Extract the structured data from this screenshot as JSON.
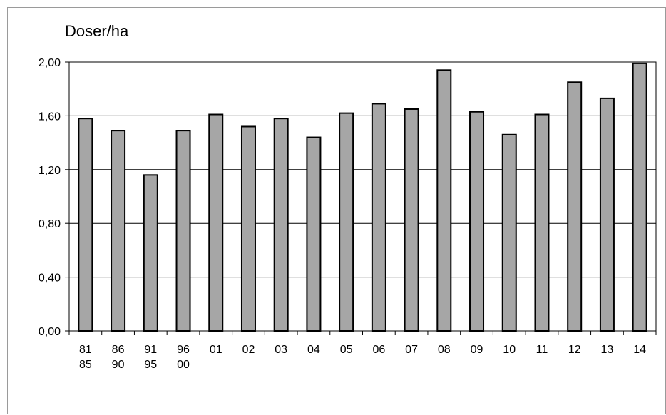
{
  "chart_data": {
    "type": "bar",
    "ylabel": "Doser/ha",
    "ylim": [
      0,
      2.0
    ],
    "yticks": [
      "0,00",
      "0,40",
      "0,80",
      "1,20",
      "1,60",
      "2,00"
    ],
    "yticks_values": [
      0,
      0.4,
      0.8,
      1.2,
      1.6,
      2.0
    ],
    "categories": [
      [
        "81",
        "85"
      ],
      [
        "86",
        "90"
      ],
      [
        "91",
        "95"
      ],
      [
        "96",
        "00"
      ],
      [
        "01"
      ],
      [
        "02"
      ],
      [
        "03"
      ],
      [
        "04"
      ],
      [
        "05"
      ],
      [
        "06"
      ],
      [
        "07"
      ],
      [
        "08"
      ],
      [
        "09"
      ],
      [
        "10"
      ],
      [
        "11"
      ],
      [
        "12"
      ],
      [
        "13"
      ],
      [
        "14"
      ]
    ],
    "values": [
      1.58,
      1.49,
      1.16,
      1.49,
      1.61,
      1.52,
      1.58,
      1.44,
      1.62,
      1.69,
      1.65,
      1.94,
      1.63,
      1.46,
      1.61,
      1.85,
      1.73,
      1.99
    ],
    "grid": true,
    "bar_color": "#a6a6a6",
    "bar_border_color": "#000000"
  }
}
